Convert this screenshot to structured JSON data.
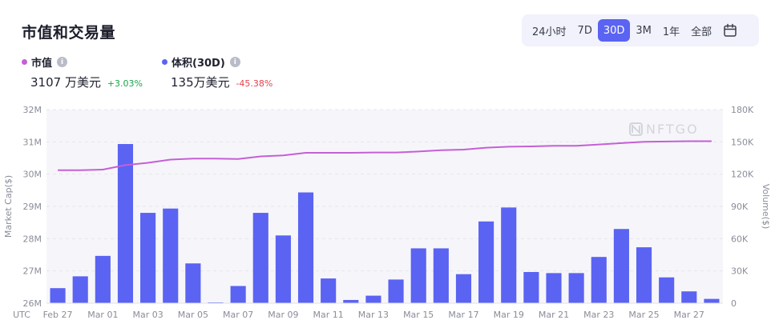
{
  "header": {
    "title": "市值和交易量",
    "ranges": [
      "24小时",
      "7D",
      "30D",
      "3M",
      "1年",
      "全部"
    ],
    "active_range": "30D",
    "calendar_icon": "calendar-icon"
  },
  "stats": {
    "market_cap": {
      "label": "市值",
      "value": "3107 万美元",
      "change": "+3.03%",
      "color": "#c55fd6"
    },
    "volume": {
      "label": "体积(30D)",
      "value": "135万美元",
      "change": "-45.38%",
      "color": "#5b63f3"
    }
  },
  "watermark": "NFTGO",
  "chart_data": {
    "type": "bar",
    "categories": [
      "Feb 27",
      "Feb 28",
      "Mar 01",
      "Mar 02",
      "Mar 03",
      "Mar 04",
      "Mar 05",
      "Mar 06",
      "Mar 07",
      "Mar 08",
      "Mar 09",
      "Mar 10",
      "Mar 11",
      "Mar 12",
      "Mar 13",
      "Mar 14",
      "Mar 15",
      "Mar 16",
      "Mar 17",
      "Mar 18",
      "Mar 19",
      "Mar 20",
      "Mar 21",
      "Mar 22",
      "Mar 23",
      "Mar 24",
      "Mar 25",
      "Mar 26",
      "Mar 27",
      "Mar 28"
    ],
    "x_tick_labels": [
      "UTC",
      "Feb 27",
      "Mar 01",
      "Mar 03",
      "Mar 05",
      "Mar 07",
      "Mar 09",
      "Mar 11",
      "Mar 13",
      "Mar 15",
      "Mar 17",
      "Mar 19",
      "Mar 21",
      "Mar 23",
      "Mar 25",
      "Mar 27"
    ],
    "series": [
      {
        "name": "体积(30D)",
        "axis": "right",
        "kind": "bar",
        "color": "#5b63f3",
        "values": [
          14000,
          25000,
          44000,
          148000,
          84000,
          88000,
          37000,
          500,
          16000,
          84000,
          63000,
          103000,
          23000,
          3000,
          7000,
          22000,
          51000,
          51000,
          27000,
          76000,
          89000,
          29000,
          28000,
          28000,
          43000,
          69000,
          52000,
          24000,
          11000,
          4000
        ]
      },
      {
        "name": "市值",
        "axis": "left",
        "kind": "line",
        "color": "#c55fd6",
        "values": [
          30.12,
          30.12,
          30.14,
          30.28,
          30.35,
          30.45,
          30.48,
          30.48,
          30.47,
          30.55,
          30.58,
          30.66,
          30.66,
          30.66,
          30.67,
          30.67,
          30.7,
          30.74,
          30.76,
          30.82,
          30.85,
          30.86,
          30.88,
          30.88,
          30.92,
          30.96,
          31.0,
          31.01,
          31.02,
          31.02
        ]
      }
    ],
    "left_axis": {
      "label": "Market Cap($)",
      "ticks": [
        "26M",
        "27M",
        "28M",
        "29M",
        "30M",
        "31M",
        "32M"
      ],
      "min": 26,
      "max": 32
    },
    "right_axis": {
      "label": "Volume($)",
      "ticks": [
        "0",
        "30K",
        "60K",
        "90K",
        "120K",
        "150K",
        "180K"
      ],
      "min": 0,
      "max": 180000
    },
    "grid": true
  }
}
